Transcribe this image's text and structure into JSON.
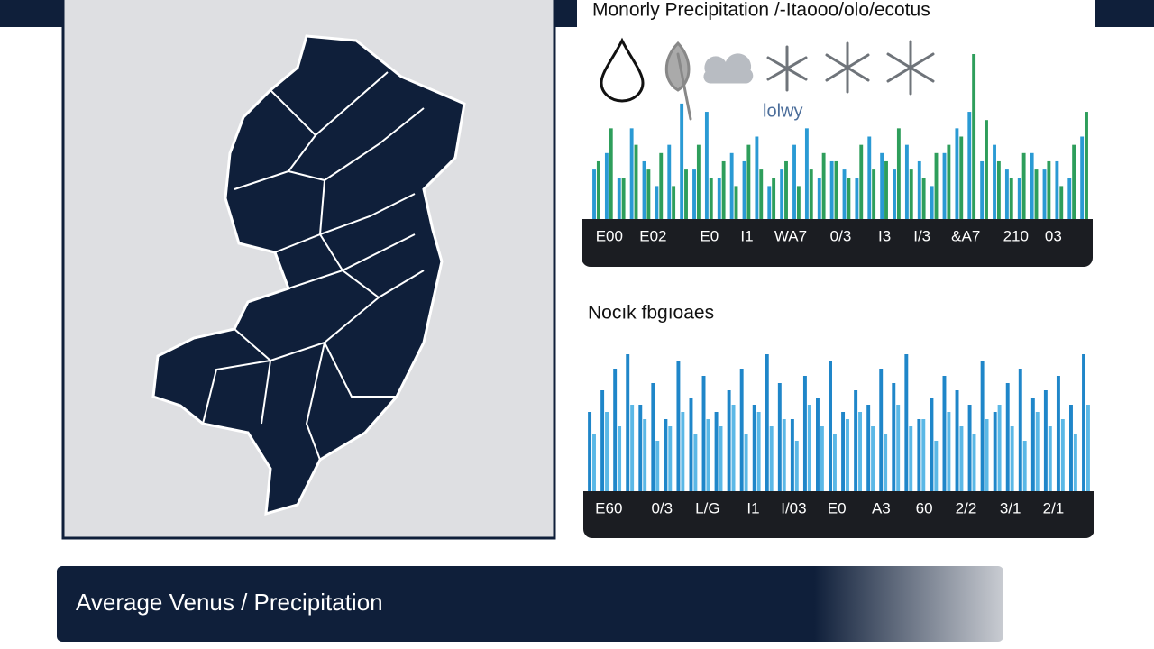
{
  "chart_data": [
    {
      "type": "bar",
      "title": "Monorly Precipitation /-Itaooo/olo/ecotus",
      "x": [
        0,
        1,
        2,
        3,
        4,
        5,
        6,
        7,
        8,
        9,
        10,
        11,
        12,
        13,
        14,
        15,
        16,
        17,
        18,
        19,
        20,
        21,
        22,
        23,
        24,
        25,
        26,
        27,
        28,
        29,
        30,
        31,
        32,
        33,
        34,
        35,
        36,
        37,
        38,
        39
      ],
      "xlim": [
        0,
        40
      ],
      "xticks": [
        {
          "value": 1.5,
          "label": "E00"
        },
        {
          "value": 5,
          "label": "E02"
        },
        {
          "value": 9.5,
          "label": "E0"
        },
        {
          "value": 12.5,
          "label": "I1"
        },
        {
          "value": 16,
          "label": "WA7"
        },
        {
          "value": 20,
          "label": "0/3"
        },
        {
          "value": 23.5,
          "label": "I3"
        },
        {
          "value": 26.5,
          "label": "I/3"
        },
        {
          "value": 30,
          "label": "&A7"
        },
        {
          "value": 34,
          "label": "210"
        },
        {
          "value": 37,
          "label": "03"
        }
      ],
      "ylim": [
        0,
        100
      ],
      "series": [
        {
          "color": "#2a9ad4",
          "values": [
            30,
            40,
            25,
            55,
            35,
            20,
            45,
            70,
            30,
            65,
            25,
            40,
            35,
            50,
            20,
            30,
            45,
            55,
            25,
            35,
            30,
            25,
            50,
            40,
            30,
            45,
            35,
            20,
            40,
            55,
            65,
            35,
            45,
            30,
            25,
            40,
            30,
            35,
            25,
            50
          ]
        },
        {
          "color": "#2e9e5b",
          "values": [
            35,
            55,
            25,
            45,
            30,
            40,
            20,
            30,
            45,
            25,
            35,
            20,
            45,
            30,
            25,
            35,
            20,
            30,
            40,
            35,
            25,
            45,
            30,
            35,
            55,
            30,
            25,
            40,
            45,
            50,
            100,
            60,
            35,
            25,
            40,
            30,
            35,
            20,
            45,
            65
          ]
        }
      ]
    },
    {
      "type": "bar",
      "title": "Nocık fbgıoaes",
      "x": [
        0,
        1,
        2,
        3,
        4,
        5,
        6,
        7,
        8,
        9,
        10,
        11,
        12,
        13,
        14,
        15,
        16,
        17,
        18,
        19,
        20,
        21,
        22,
        23,
        24,
        25,
        26,
        27,
        28,
        29,
        30,
        31,
        32,
        33,
        34,
        35,
        36,
        37,
        38,
        39
      ],
      "xlim": [
        0,
        40
      ],
      "xticks": [
        {
          "value": 1.8,
          "label": "E60"
        },
        {
          "value": 6,
          "label": "0/3"
        },
        {
          "value": 9.6,
          "label": "L/G"
        },
        {
          "value": 13.2,
          "label": "I1"
        },
        {
          "value": 16.4,
          "label": "I/03"
        },
        {
          "value": 19.8,
          "label": "E0"
        },
        {
          "value": 23.3,
          "label": "A3"
        },
        {
          "value": 26.7,
          "label": "60"
        },
        {
          "value": 30,
          "label": "2/2"
        },
        {
          "value": 33.5,
          "label": "3/1"
        },
        {
          "value": 36.9,
          "label": "2/1"
        }
      ],
      "ylim": [
        0,
        100
      ],
      "series": [
        {
          "color": "#1f86c9",
          "values": [
            55,
            70,
            85,
            95,
            60,
            75,
            50,
            90,
            65,
            80,
            55,
            70,
            85,
            60,
            95,
            75,
            50,
            80,
            65,
            90,
            55,
            70,
            60,
            85,
            75,
            95,
            50,
            65,
            80,
            70,
            60,
            90,
            55,
            75,
            85,
            65,
            70,
            80,
            60,
            95
          ]
        },
        {
          "color": "#5bb8e6",
          "values": [
            40,
            55,
            45,
            60,
            50,
            35,
            45,
            55,
            40,
            50,
            45,
            60,
            40,
            55,
            45,
            50,
            35,
            60,
            45,
            40,
            50,
            55,
            45,
            40,
            60,
            45,
            50,
            35,
            55,
            45,
            40,
            50,
            60,
            45,
            35,
            55,
            45,
            50,
            40,
            60
          ]
        }
      ]
    }
  ],
  "icon_label": "lolwy",
  "banner": {
    "text": "Average Venus / Precipitation"
  }
}
